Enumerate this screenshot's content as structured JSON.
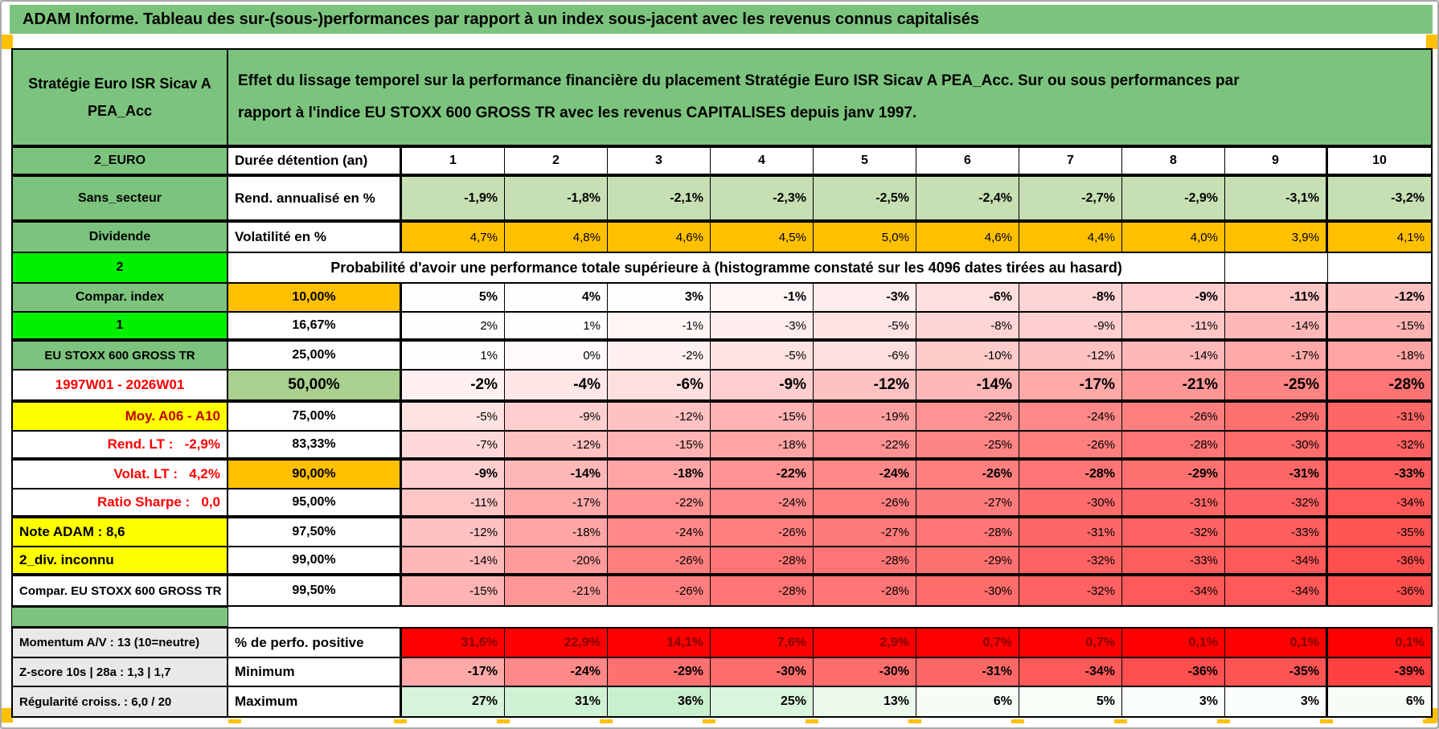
{
  "title": "ADAM Informe. Tableau des sur-(sous-)performances par rapport à un index sous-jacent avec les revenus connus capitalisés",
  "corner_label": "Stratégie Euro ISR Sicav A PEA_Acc",
  "header_text": "Effet du lissage temporel sur la performance financière du placement Stratégie Euro ISR Sicav A PEA_Acc. Sur ou sous performances par rapport à l'indice EU STOXX 600 GROSS TR avec les revenus CAPITALISES depuis janv 1997.",
  "columns": [
    "1",
    "2",
    "3",
    "4",
    "5",
    "6",
    "7",
    "8",
    "9",
    "10"
  ],
  "top_rows": [
    {
      "label": "2_EURO",
      "row_label": "Durée détention (an)",
      "align": "center",
      "bold": true,
      "value_bg": "#FFFFFF",
      "values": [
        "1",
        "2",
        "3",
        "4",
        "5",
        "6",
        "7",
        "8",
        "9",
        "10"
      ]
    },
    {
      "label": "Sans_secteur",
      "row_label": "Rend. annualisé en %",
      "align": "right",
      "bold": true,
      "value_bg": "#C6E0B4",
      "values": [
        "-1,9%",
        "-1,8%",
        "-2,1%",
        "-2,3%",
        "-2,5%",
        "-2,4%",
        "-2,7%",
        "-2,9%",
        "-3,1%",
        "-3,2%"
      ]
    },
    {
      "label": "Dividende",
      "row_label": "Volatilité en %",
      "align": "right",
      "bold": false,
      "value_bg": "#FFC000",
      "values": [
        "4,7%",
        "4,8%",
        "4,6%",
        "4,5%",
        "5,0%",
        "4,6%",
        "4,4%",
        "4,0%",
        "3,9%",
        "4,1%"
      ]
    }
  ],
  "proba_banner": {
    "label": "2",
    "label_bg": "#00F000",
    "text": "Probabilité d'avoir une performance totale supérieure à (histogramme constaté sur les 4096 dates tirées au hasard)"
  },
  "matrix_rows": [
    {
      "label": "Compar. index",
      "label_bg": "#7CC47D",
      "label_fg": "#000000",
      "label_align": "center",
      "label_size": 16,
      "note": false,
      "quantile": "10,00%",
      "q_bg": "#FFC000",
      "bold": true,
      "values": [
        "5%",
        "4%",
        "3%",
        "-1%",
        "-3%",
        "-6%",
        "-8%",
        "-9%",
        "-11%",
        "-12%"
      ],
      "colors": [
        "#FEFEFE",
        "#FEFEFE",
        "#FEFEFE",
        "#FFF5F5",
        "#FFECEC",
        "#FFDEDE",
        "#FFD4D4",
        "#FFCFCF",
        "#FFC6C6",
        "#FFC1C1"
      ]
    },
    {
      "label": "1",
      "label_bg": "#00F000",
      "label_fg": "#000000",
      "label_align": "center",
      "label_size": 16,
      "note": true,
      "quantile": "16,67%",
      "q_bg": "#FFFFFF",
      "bold": false,
      "values": [
        "2%",
        "1%",
        "-1%",
        "-3%",
        "-5%",
        "-8%",
        "-9%",
        "-11%",
        "-14%",
        "-15%"
      ],
      "colors": [
        "#FEFEFE",
        "#FEFEFE",
        "#FFF5F5",
        "#FFECEC",
        "#FFE2E2",
        "#FFD4D4",
        "#FFCFCF",
        "#FFC6C6",
        "#FFB8B8",
        "#FFB3B3"
      ]
    },
    {
      "label": "EU STOXX 600 GROSS TR",
      "label_bg": "#7CC47D",
      "label_fg": "#000000",
      "label_align": "center",
      "label_size": 15,
      "note": false,
      "quantile": "25,00%",
      "q_bg": "#FFFFFF",
      "bold": false,
      "values": [
        "1%",
        "0%",
        "-2%",
        "-5%",
        "-6%",
        "-10%",
        "-12%",
        "-14%",
        "-17%",
        "-18%"
      ],
      "colors": [
        "#FEFEFE",
        "#FFFAFA",
        "#FFF1F1",
        "#FFE2E2",
        "#FFDEDE",
        "#FFCBCB",
        "#FFC1C1",
        "#FFB8B8",
        "#FFA9A9",
        "#FFA5A5"
      ]
    },
    {
      "label": "1997W01 - 2026W01",
      "label_bg": "#FFFFFF",
      "label_fg": "#FF0000",
      "label_align": "center",
      "label_size": 17,
      "note": false,
      "quantile": "50,00%",
      "q_bg": "#A9D08E",
      "bold": true,
      "values": [
        "-2%",
        "-4%",
        "-6%",
        "-9%",
        "-12%",
        "-14%",
        "-17%",
        "-21%",
        "-25%",
        "-28%"
      ],
      "colors": [
        "#FFF1F1",
        "#FFE7E7",
        "#FFDEDE",
        "#FFCFCF",
        "#FFC1C1",
        "#FFB8B8",
        "#FFA9A9",
        "#FF9797",
        "#FF8484",
        "#FF7575"
      ]
    },
    {
      "label": "Moy. A06 - A10",
      "label_bg": "#FFFF00",
      "label_fg": "#C00000",
      "label_align": "right",
      "label_size": 17,
      "note": false,
      "quantile": "75,00%",
      "q_bg": "#FFFFFF",
      "bold": false,
      "values": [
        "-5%",
        "-9%",
        "-12%",
        "-15%",
        "-19%",
        "-22%",
        "-24%",
        "-26%",
        "-29%",
        "-31%"
      ],
      "colors": [
        "#FFE2E2",
        "#FFCFCF",
        "#FFC1C1",
        "#FFB3B3",
        "#FFA0A0",
        "#FF9292",
        "#FF8888",
        "#FF7F7F",
        "#FF7171",
        "#FF6767"
      ]
    },
    {
      "label": "Rend. LT :   -2,9%",
      "label_bg": "#FFFFFF",
      "label_fg": "#FF0000",
      "label_align": "right",
      "label_size": 17,
      "note": false,
      "quantile": "83,33%",
      "q_bg": "#FFFFFF",
      "bold": false,
      "values": [
        "-7%",
        "-12%",
        "-15%",
        "-18%",
        "-22%",
        "-25%",
        "-26%",
        "-28%",
        "-30%",
        "-32%"
      ],
      "colors": [
        "#FFD9D9",
        "#FFC1C1",
        "#FFB3B3",
        "#FFA5A5",
        "#FF9292",
        "#FF8484",
        "#FF7F7F",
        "#FF7575",
        "#FF6C6C",
        "#FF6262"
      ]
    },
    {
      "label": "Volat. LT :   4,2%",
      "label_bg": "#FFFFFF",
      "label_fg": "#FF0000",
      "label_align": "right",
      "label_size": 17,
      "note": false,
      "quantile": "90,00%",
      "q_bg": "#FFC000",
      "bold": true,
      "values": [
        "-9%",
        "-14%",
        "-18%",
        "-22%",
        "-24%",
        "-26%",
        "-28%",
        "-29%",
        "-31%",
        "-33%"
      ],
      "colors": [
        "#FFCFCF",
        "#FFB8B8",
        "#FFA5A5",
        "#FF9292",
        "#FF8888",
        "#FF7F7F",
        "#FF7575",
        "#FF7171",
        "#FF6767",
        "#FF5E5E"
      ]
    },
    {
      "label": "Ratio Sharpe :   0,0",
      "label_bg": "#FFFFFF",
      "label_fg": "#FF0000",
      "label_align": "right",
      "label_size": 17,
      "note": false,
      "quantile": "95,00%",
      "q_bg": "#FFFFFF",
      "bold": false,
      "values": [
        "-11%",
        "-17%",
        "-22%",
        "-24%",
        "-26%",
        "-27%",
        "-30%",
        "-31%",
        "-32%",
        "-34%"
      ],
      "colors": [
        "#FFC6C6",
        "#FFA9A9",
        "#FF9292",
        "#FF8888",
        "#FF7F7F",
        "#FF7A7A",
        "#FF6C6C",
        "#FF6767",
        "#FF6262",
        "#FF5959"
      ]
    },
    {
      "label": "Note ADAM : 8,6",
      "label_bg": "#FFFF00",
      "label_fg": "#000000",
      "label_align": "left",
      "label_size": 17,
      "note": false,
      "quantile": "97,50%",
      "q_bg": "#FFFFFF",
      "bold": false,
      "values": [
        "-12%",
        "-18%",
        "-24%",
        "-26%",
        "-27%",
        "-28%",
        "-31%",
        "-32%",
        "-33%",
        "-35%"
      ],
      "colors": [
        "#FFC1C1",
        "#FFA5A5",
        "#FF8888",
        "#FF7F7F",
        "#FF7A7A",
        "#FF7575",
        "#FF6767",
        "#FF6262",
        "#FF5E5E",
        "#FF5454"
      ]
    },
    {
      "label": "2_div. inconnu",
      "label_bg": "#FFFF00",
      "label_fg": "#000000",
      "label_align": "left",
      "label_size": 17,
      "note": false,
      "quantile": "99,00%",
      "q_bg": "#FFFFFF",
      "bold": false,
      "values": [
        "-14%",
        "-20%",
        "-26%",
        "-28%",
        "-28%",
        "-29%",
        "-32%",
        "-33%",
        "-34%",
        "-36%"
      ],
      "colors": [
        "#FFB8B8",
        "#FF9B9B",
        "#FF7F7F",
        "#FF7575",
        "#FF7575",
        "#FF7171",
        "#FF6262",
        "#FF5E5E",
        "#FF5959",
        "#FF4F4F"
      ]
    },
    {
      "label": "Compar. EU STOXX 600 GROSS TR",
      "label_bg": "#FFFFFF",
      "label_fg": "#000000",
      "label_align": "left",
      "label_size": 15,
      "note": false,
      "quantile": "99,50%",
      "q_bg": "#FFFFFF",
      "bold": false,
      "values": [
        "-15%",
        "-21%",
        "-26%",
        "-28%",
        "-28%",
        "-30%",
        "-32%",
        "-34%",
        "-34%",
        "-36%"
      ],
      "colors": [
        "#FFB3B3",
        "#FF9797",
        "#FF7F7F",
        "#FF7575",
        "#FF7575",
        "#FF6C6C",
        "#FF6262",
        "#FF5959",
        "#FF5959",
        "#FF4F4F"
      ]
    }
  ],
  "bottom_rows": [
    {
      "label": "Momentum A/V : 13 (10=neutre)",
      "row_label": "% de perfo. positive",
      "bold": true,
      "value_fg": "#7F0000",
      "values": [
        "31,6%",
        "22,9%",
        "14,1%",
        "7,6%",
        "2,9%",
        "0,7%",
        "0,7%",
        "0,1%",
        "0,1%",
        "0,1%"
      ],
      "colors": [
        "#FF0000",
        "#FF0000",
        "#FF0000",
        "#FF0000",
        "#FF0000",
        "#FF0000",
        "#FF0000",
        "#FF0000",
        "#FF0000",
        "#FF0000"
      ]
    },
    {
      "label": "Z-score 10s | 28a : 1,3 | 1,7",
      "row_label": "Minimum",
      "bold": true,
      "value_fg": "#000000",
      "values": [
        "-17%",
        "-24%",
        "-29%",
        "-30%",
        "-30%",
        "-31%",
        "-34%",
        "-36%",
        "-35%",
        "-39%"
      ],
      "colors": [
        "#FFA9A9",
        "#FF8888",
        "#FF7171",
        "#FF6C6C",
        "#FF6C6C",
        "#FF6767",
        "#FF5959",
        "#FF4F4F",
        "#FF5454",
        "#FF4141"
      ]
    },
    {
      "label": "Régularité croiss. : 6,0 / 20",
      "row_label": "Maximum",
      "bold": true,
      "value_fg": "#000000",
      "values": [
        "27%",
        "31%",
        "36%",
        "25%",
        "13%",
        "6%",
        "5%",
        "3%",
        "3%",
        "6%"
      ],
      "colors": [
        "#D6F4DA",
        "#D0F2D4",
        "#C8F0CD",
        "#D9F5DC",
        "#EBFAED",
        "#F6FDF7",
        "#F7FEF8",
        "#FAFEFB",
        "#FAFEFB",
        "#F6FDF7"
      ]
    }
  ],
  "colors": {
    "header_green": "#7CC47D",
    "bright_green": "#00F000",
    "orange": "#FFC000",
    "yellow": "#FFFF00",
    "light_green": "#C6E0B4",
    "mid_green": "#A9D08E",
    "alert_red": "#FF0000",
    "dark_red": "#7F0000",
    "gray_label": "#E9E9E9",
    "border": "#000000"
  }
}
